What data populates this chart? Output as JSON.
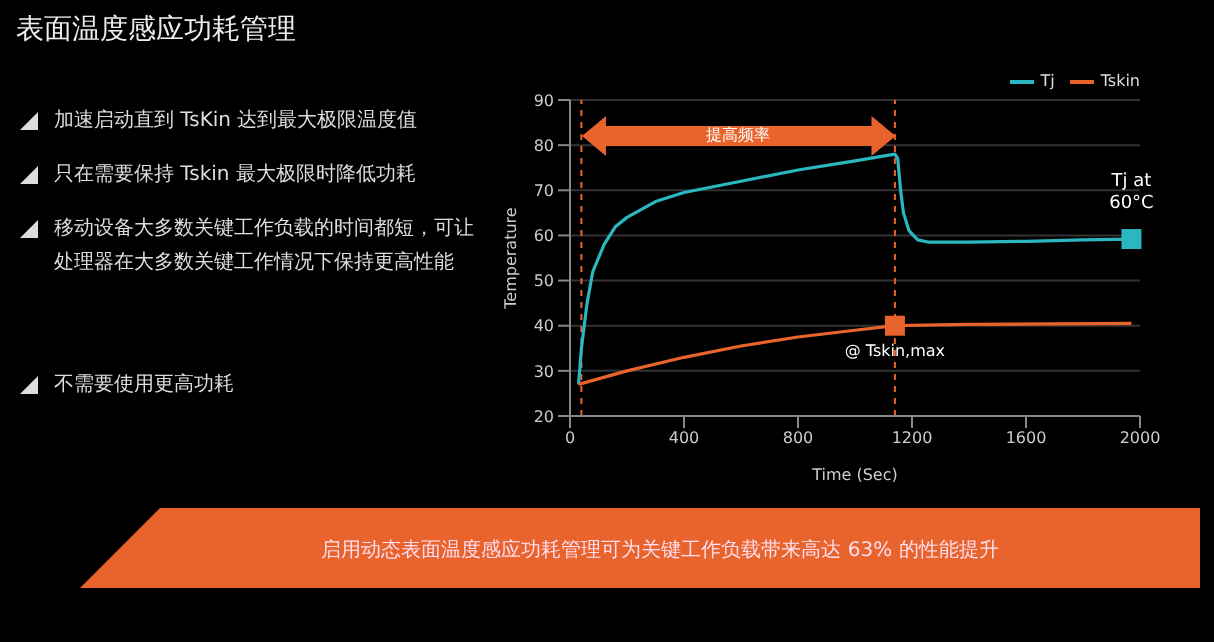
{
  "chart_data": {
    "type": "line",
    "title": "表面温度感应功耗管理",
    "xlabel": "Time (Sec)",
    "ylabel": "Temperature",
    "xlim": [
      0,
      2000
    ],
    "xticks": [
      0,
      400,
      800,
      1200,
      1600,
      2000
    ],
    "ylim": [
      20,
      90
    ],
    "yticks": [
      20,
      30,
      40,
      50,
      60,
      70,
      80,
      90
    ],
    "grid": "y",
    "legend": "top right",
    "series": [
      {
        "name": "Tj",
        "color": "#2ab7c0",
        "x": [
          30,
          40,
          60,
          80,
          120,
          160,
          200,
          300,
          400,
          600,
          800,
          1000,
          1140,
          1150,
          1160,
          1170,
          1190,
          1220,
          1260,
          1400,
          1600,
          1800,
          1970
        ],
        "values": [
          27,
          35,
          45,
          52,
          58,
          62,
          64,
          67.5,
          69.5,
          72,
          74.5,
          76.5,
          78,
          77,
          70,
          65,
          61,
          59,
          58.5,
          58.5,
          58.7,
          59,
          59.2
        ]
      },
      {
        "name": "Tskin",
        "color": "#e8642c",
        "x": [
          30,
          200,
          400,
          600,
          800,
          1000,
          1140,
          1400,
          1970
        ],
        "values": [
          27,
          30,
          33,
          35.5,
          37.5,
          39,
          40,
          40.3,
          40.5
        ]
      }
    ],
    "ref_lines": [
      {
        "axis": "x",
        "value": 40,
        "color": "#e8642c",
        "line_style": "dashed"
      },
      {
        "axis": "x",
        "value": 1140,
        "color": "#e8642c",
        "line_style": "dashed"
      }
    ],
    "annotations": [
      {
        "text": "Tj at 60°C",
        "x": 1970,
        "y": 59.2
      },
      {
        "text": "@ Tskin,max",
        "x": 1140,
        "y": 40
      },
      "提高频率",
      "加速启动直到 TsKin 达到最大极限温度值",
      "只在需要保持 Tskin 最大极限时降低功耗",
      "移动设备大多数关键工作负载的时间都短，可让处理器在大多数关键工作情况下保持更高性能",
      "不需要使用更高功耗",
      "启用动态表面温度感应功耗管理可为关键工作负载带来高达 63% 的性能提升"
    ]
  }
}
